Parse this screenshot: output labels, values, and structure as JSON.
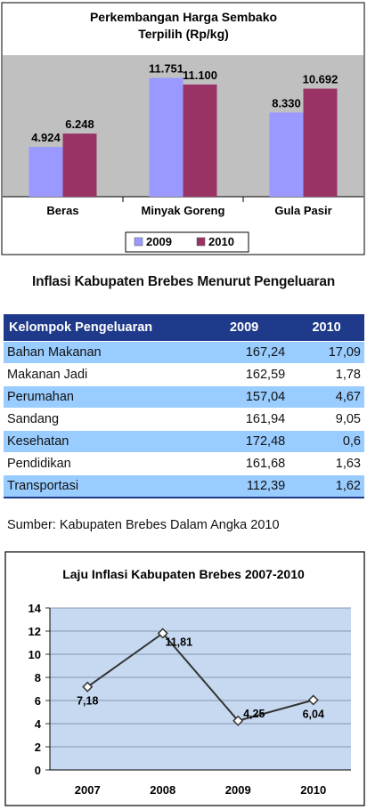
{
  "chart_data": [
    {
      "type": "bar",
      "title": "Perkembangan Harga Sembako",
      "subtitle": "Terpilih (Rp/kg)",
      "categories": [
        "Beras",
        "Minyak Goreng",
        "Gula Pasir"
      ],
      "series": [
        {
          "name": "2009",
          "values": [
            4924,
            11751,
            8330
          ],
          "labels": [
            "4.924",
            "11.751",
            "8.330"
          ],
          "color": "#9999ff"
        },
        {
          "name": "2010",
          "values": [
            6248,
            11100,
            10692
          ],
          "labels": [
            "6.248",
            "11.100",
            "10.692"
          ],
          "color": "#993366"
        }
      ],
      "ylim": [
        0,
        14000
      ],
      "grid": false,
      "legend": "bottom",
      "plot_bg": "#c0c0c0"
    },
    {
      "type": "table",
      "title": "Inflasi Kabupaten Brebes Menurut Pengeluaran",
      "columns": [
        "Kelompok Pengeluaran",
        "2009",
        "2010"
      ],
      "rows": [
        [
          "Bahan Makanan",
          "167,24",
          "17,09"
        ],
        [
          "Makanan Jadi",
          "162,59",
          "1,78"
        ],
        [
          "Perumahan",
          "157,04",
          "4,67"
        ],
        [
          "Sandang",
          "161,94",
          "9,05"
        ],
        [
          "Kesehatan",
          "172,48",
          "0,6"
        ],
        [
          "Pendidikan",
          "161,68",
          "1,63"
        ],
        [
          "Transportasi",
          "112,39",
          "1,62"
        ]
      ],
      "source": "Sumber: Kabupaten Brebes Dalam Angka 2010"
    },
    {
      "type": "line",
      "title": "Laju Inflasi Kabupaten Brebes 2007-2010",
      "x": [
        "2007",
        "2008",
        "2009",
        "2010"
      ],
      "series": [
        {
          "values": [
            7.18,
            11.81,
            4.25,
            6.04
          ],
          "labels": [
            "7,18",
            "11,81",
            "4,25",
            "6,04"
          ],
          "color": "#333333"
        }
      ],
      "ylim": [
        0,
        14
      ],
      "yticks": [
        "0",
        "2",
        "4",
        "6",
        "8",
        "10",
        "12",
        "14"
      ],
      "grid": true,
      "plot_bg": "#c6d9f1"
    }
  ]
}
